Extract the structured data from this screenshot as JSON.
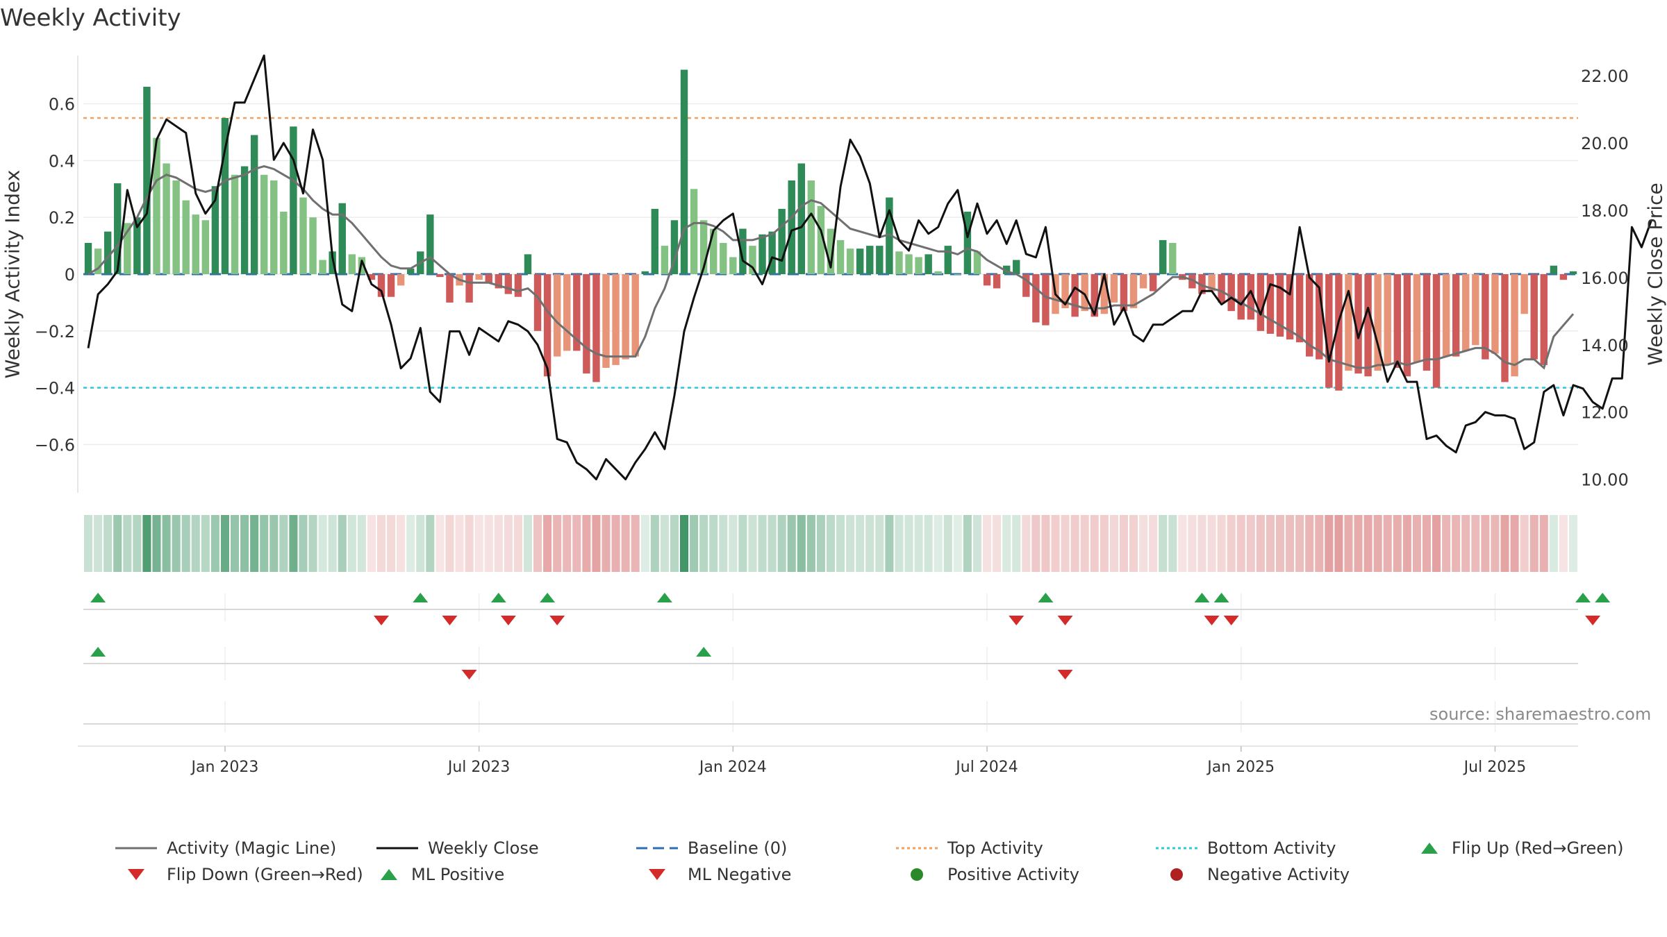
{
  "title": "Weekly Activity",
  "source": "source: sharemaestro.com",
  "colors": {
    "pos_dark": "#2e8b57",
    "pos_light": "#83c283",
    "neg_dark": "#cf5a5a",
    "neg_light": "#e89479",
    "magic_line": "#707070",
    "close": "#111111",
    "baseline": "#2f6fb0",
    "top": "#f0a060",
    "bottom": "#30c8d8",
    "marker_up": "#2aa04a",
    "marker_down": "#d42a2a",
    "dot_pos": "#2a8a2a",
    "dot_neg": "#b02020"
  },
  "legend": [
    {
      "label": "Activity (Magic Line)",
      "icon": "solid-gray-line"
    },
    {
      "label": "Weekly Close",
      "icon": "solid-black-line"
    },
    {
      "label": "Baseline (0)",
      "icon": "dashed-blue-line"
    },
    {
      "label": "Top Activity",
      "icon": "dotted-orange-line"
    },
    {
      "label": "Bottom Activity",
      "icon": "dotted-cyan-line"
    },
    {
      "label": "Flip Up (Red→Green)",
      "icon": "green-up-triangle"
    },
    {
      "label": "Flip Down (Green→Red)",
      "icon": "red-down-triangle"
    },
    {
      "label": "ML Positive",
      "icon": "green-up-triangle"
    },
    {
      "label": "ML Negative",
      "icon": "red-down-triangle"
    },
    {
      "label": "Positive Activity",
      "icon": "green-dot"
    },
    {
      "label": "Negative Activity",
      "icon": "red-dot"
    }
  ],
  "chart_data": {
    "type": "bar+line",
    "title": "Weekly Activity",
    "ylabel_left": "Weekly Activity Index",
    "ylabel_right": "Weekly Close Price",
    "ylim_left": [
      -0.77,
      0.77
    ],
    "ylim_right": [
      9.6,
      22.6
    ],
    "yticks_left": [
      {
        "v": 0.6,
        "label": "0.6"
      },
      {
        "v": 0.4,
        "label": "0.4"
      },
      {
        "v": 0.2,
        "label": "0.2"
      },
      {
        "v": 0,
        "label": "0"
      },
      {
        "v": -0.2,
        "label": "−0.2"
      },
      {
        "v": -0.4,
        "label": "−0.4"
      },
      {
        "v": -0.6,
        "label": "−0.6"
      }
    ],
    "yticks_right": [
      {
        "v": 22,
        "label": "22.00"
      },
      {
        "v": 20,
        "label": "20.00"
      },
      {
        "v": 18,
        "label": "18.00"
      },
      {
        "v": 16,
        "label": "16.00"
      },
      {
        "v": 14,
        "label": "14.00"
      },
      {
        "v": 12,
        "label": "12.00"
      },
      {
        "v": 10,
        "label": "10.00"
      }
    ],
    "xticks": [
      {
        "week": 14,
        "label": "Jan 2023"
      },
      {
        "week": 40,
        "label": "Jul 2023"
      },
      {
        "week": 66,
        "label": "Jan 2024"
      },
      {
        "week": 92,
        "label": "Jul 2024"
      },
      {
        "week": 118,
        "label": "Jan 2025"
      },
      {
        "week": 144,
        "label": "Jul 2025"
      }
    ],
    "top_activity": 0.55,
    "bottom_activity": -0.4,
    "baseline": 0,
    "activity": [
      0.11,
      0.09,
      0.15,
      0.32,
      0.18,
      0.2,
      0.66,
      0.48,
      0.39,
      0.33,
      0.26,
      0.21,
      0.19,
      0.31,
      0.55,
      0.35,
      0.38,
      0.49,
      0.35,
      0.33,
      0.22,
      0.52,
      0.27,
      0.2,
      0.05,
      0.08,
      0.25,
      0.07,
      0.06,
      -0.02,
      -0.08,
      -0.08,
      -0.04,
      0.02,
      0.08,
      0.21,
      -0.01,
      -0.1,
      -0.04,
      -0.1,
      -0.02,
      -0.03,
      -0.05,
      -0.07,
      -0.08,
      0.07,
      -0.2,
      -0.36,
      -0.29,
      -0.27,
      -0.27,
      -0.35,
      -0.38,
      -0.33,
      -0.32,
      -0.3,
      -0.29,
      0.01,
      0.23,
      0.1,
      0.19,
      0.72,
      0.3,
      0.19,
      0.16,
      0.11,
      0.06,
      0.16,
      0.1,
      0.14,
      0.15,
      0.23,
      0.33,
      0.39,
      0.33,
      0.24,
      0.16,
      0.12,
      0.09,
      0.09,
      0.1,
      0.1,
      0.27,
      0.08,
      0.07,
      0.06,
      0.07,
      0.01,
      0.1,
      0.0,
      0.22,
      0.08,
      -0.04,
      -0.05,
      0.03,
      0.05,
      -0.08,
      -0.17,
      -0.18,
      -0.14,
      -0.12,
      -0.15,
      -0.13,
      -0.15,
      -0.14,
      -0.1,
      -0.13,
      -0.12,
      -0.05,
      -0.06,
      0.12,
      0.11,
      -0.02,
      -0.05,
      -0.07,
      -0.06,
      -0.1,
      -0.13,
      -0.16,
      -0.16,
      -0.2,
      -0.21,
      -0.22,
      -0.23,
      -0.24,
      -0.29,
      -0.3,
      -0.4,
      -0.41,
      -0.34,
      -0.35,
      -0.36,
      -0.34,
      -0.32,
      -0.33,
      -0.36,
      -0.31,
      -0.34,
      -0.4,
      -0.29,
      -0.29,
      -0.27,
      -0.25,
      -0.3,
      -0.28,
      -0.38,
      -0.36,
      -0.14,
      -0.3,
      -0.32,
      0.03,
      -0.02,
      0.01
    ],
    "magic_line": [
      0.0,
      0.02,
      0.06,
      0.1,
      0.15,
      0.2,
      0.27,
      0.33,
      0.35,
      0.34,
      0.32,
      0.3,
      0.29,
      0.3,
      0.33,
      0.34,
      0.35,
      0.37,
      0.38,
      0.37,
      0.35,
      0.33,
      0.3,
      0.26,
      0.23,
      0.21,
      0.21,
      0.18,
      0.14,
      0.1,
      0.06,
      0.03,
      0.02,
      0.02,
      0.04,
      0.06,
      0.03,
      0.0,
      -0.02,
      -0.03,
      -0.03,
      -0.03,
      -0.04,
      -0.05,
      -0.06,
      -0.05,
      -0.08,
      -0.13,
      -0.17,
      -0.2,
      -0.23,
      -0.26,
      -0.28,
      -0.29,
      -0.29,
      -0.29,
      -0.29,
      -0.22,
      -0.12,
      -0.05,
      0.05,
      0.16,
      0.18,
      0.18,
      0.17,
      0.15,
      0.12,
      0.12,
      0.12,
      0.13,
      0.14,
      0.17,
      0.2,
      0.24,
      0.26,
      0.25,
      0.22,
      0.19,
      0.16,
      0.15,
      0.14,
      0.13,
      0.14,
      0.12,
      0.11,
      0.1,
      0.09,
      0.08,
      0.08,
      0.07,
      0.09,
      0.08,
      0.05,
      0.03,
      0.01,
      0.0,
      -0.02,
      -0.05,
      -0.08,
      -0.09,
      -0.1,
      -0.11,
      -0.12,
      -0.12,
      -0.12,
      -0.11,
      -0.11,
      -0.11,
      -0.09,
      -0.07,
      -0.04,
      -0.01,
      -0.01,
      -0.02,
      -0.04,
      -0.05,
      -0.06,
      -0.08,
      -0.1,
      -0.12,
      -0.14,
      -0.16,
      -0.18,
      -0.2,
      -0.22,
      -0.25,
      -0.27,
      -0.3,
      -0.31,
      -0.32,
      -0.33,
      -0.33,
      -0.32,
      -0.32,
      -0.31,
      -0.32,
      -0.31,
      -0.3,
      -0.3,
      -0.29,
      -0.28,
      -0.27,
      -0.26,
      -0.26,
      -0.28,
      -0.31,
      -0.32,
      -0.3,
      -0.3,
      -0.33,
      -0.22,
      -0.18,
      -0.14
    ],
    "weekly_close": [
      13.9,
      15.5,
      15.8,
      16.2,
      18.6,
      17.5,
      17.9,
      20.1,
      20.7,
      20.5,
      20.3,
      18.5,
      17.9,
      18.3,
      19.8,
      21.2,
      21.2,
      21.9,
      22.6,
      19.5,
      20.0,
      19.5,
      18.5,
      20.4,
      19.5,
      16.6,
      15.2,
      15.0,
      16.5,
      15.8,
      15.6,
      14.6,
      13.3,
      13.6,
      14.5,
      12.6,
      12.3,
      14.4,
      14.4,
      13.7,
      14.5,
      14.3,
      14.1,
      14.7,
      14.6,
      14.4,
      14.0,
      13.3,
      11.2,
      11.1,
      10.5,
      10.3,
      10.0,
      10.6,
      10.3,
      10.0,
      10.5,
      10.9,
      11.4,
      10.9,
      12.5,
      14.4,
      15.4,
      16.3,
      17.4,
      17.7,
      17.9,
      16.5,
      16.3,
      15.8,
      16.6,
      16.5,
      17.4,
      17.5,
      17.9,
      17.4,
      16.3,
      18.7,
      20.1,
      19.6,
      18.8,
      17.2,
      18.0,
      17.1,
      16.8,
      17.7,
      17.3,
      17.5,
      18.2,
      18.6,
      17.2,
      18.2,
      17.3,
      17.7,
      17.0,
      17.7,
      16.7,
      16.6,
      17.5,
      15.5,
      15.2,
      15.7,
      15.5,
      14.9,
      16.1,
      14.6,
      15.1,
      14.3,
      14.1,
      14.6,
      14.6,
      14.8,
      15.0,
      15.0,
      15.6,
      15.6,
      15.2,
      15.4,
      15.2,
      15.6,
      14.9,
      15.8,
      15.7,
      15.5,
      17.5,
      16.0,
      15.7,
      13.5,
      14.7,
      15.6,
      14.2,
      15.1,
      14.0,
      12.9,
      13.5,
      12.9,
      12.9,
      11.2,
      11.3,
      11.0,
      10.8,
      11.6,
      11.7,
      12.0,
      11.9,
      11.9,
      11.8,
      10.9,
      11.1,
      12.6,
      12.8,
      11.9,
      12.8,
      12.7,
      12.3,
      12.1,
      13.0,
      13.0,
      17.5,
      16.9,
      17.7
    ]
  },
  "flip_markers": {
    "up_weeks": [
      1,
      34,
      42,
      47,
      59,
      98,
      114,
      116,
      153,
      155
    ],
    "down_weeks": [
      30,
      37,
      43,
      48,
      95,
      100,
      115,
      117,
      154
    ]
  },
  "ml_markers": {
    "up_weeks": [
      1,
      63
    ],
    "down_weeks": [
      39,
      100
    ]
  }
}
